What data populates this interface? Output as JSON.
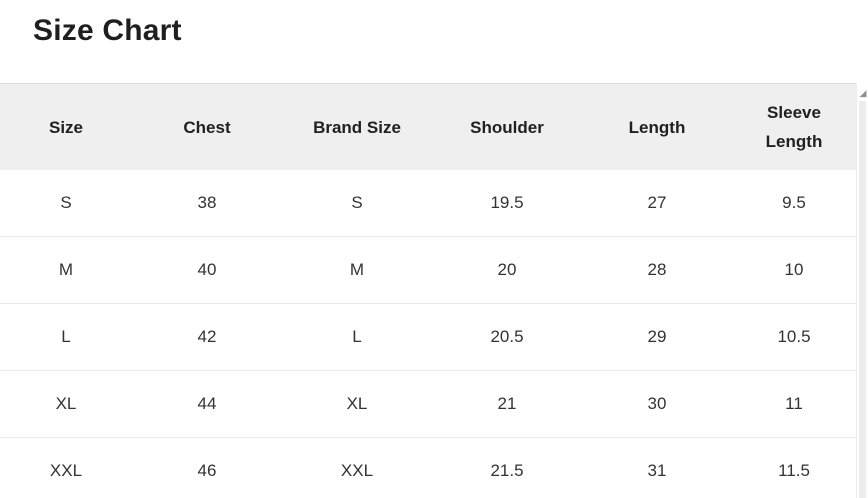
{
  "page": {
    "title": "Size Chart"
  },
  "size_table": {
    "columns": [
      "Size",
      "Chest",
      "Brand Size",
      "Shoulder",
      "Length",
      "Sleeve Length"
    ],
    "rows": [
      {
        "cells": [
          "S",
          "38",
          "S",
          "19.5",
          "27",
          "9.5"
        ]
      },
      {
        "cells": [
          "M",
          "40",
          "M",
          "20",
          "28",
          "10"
        ]
      },
      {
        "cells": [
          "L",
          "42",
          "L",
          "20.5",
          "29",
          "10.5"
        ]
      },
      {
        "cells": [
          "XL",
          "44",
          "XL",
          "21",
          "30",
          "11"
        ]
      },
      {
        "cells": [
          "XXL",
          "46",
          "XXL",
          "21.5",
          "31",
          "11.5"
        ]
      }
    ]
  },
  "colors": {
    "header_background": "#efefef",
    "row_divider": "#e9e9e9",
    "text": "#212121"
  },
  "icons": {
    "scroll_up_arrow": "◢"
  }
}
